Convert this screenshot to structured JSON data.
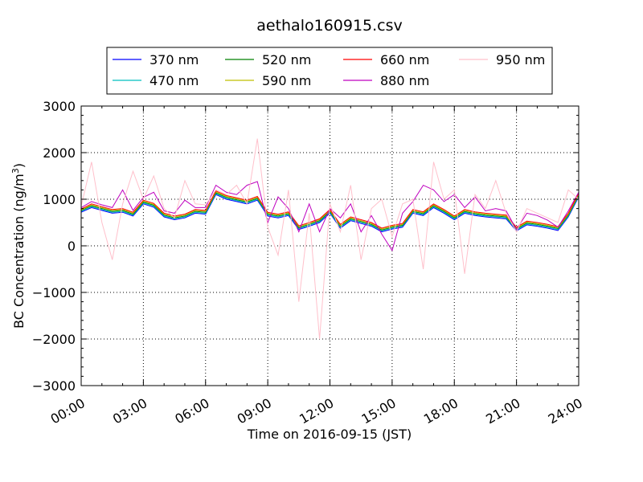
{
  "chart_data": {
    "type": "line",
    "title": "aethalo160915.csv",
    "xlabel": "Time on 2016-09-15 (JST)",
    "ylabel": "BC Concentration (ng/m³)",
    "ylabel_parts": {
      "main": "BC Concentration (ng/m",
      "sup": "3",
      "close": ")"
    },
    "xlim": [
      "00:00",
      "24:00"
    ],
    "ylim": [
      -3000,
      3000
    ],
    "x_ticks": [
      "00:00",
      "03:00",
      "06:00",
      "09:00",
      "12:00",
      "15:00",
      "18:00",
      "21:00",
      "24:00"
    ],
    "y_ticks": [
      3000,
      2000,
      1000,
      0,
      -1000,
      -2000,
      -3000
    ],
    "y_tick_labels": [
      "3000",
      "2000",
      "1000",
      "0",
      "−1000",
      "−2000",
      "−3000"
    ],
    "grid": true,
    "legend_position": "top, outside plot",
    "x": [
      "00:00",
      "00:30",
      "01:00",
      "01:30",
      "02:00",
      "02:30",
      "03:00",
      "03:30",
      "04:00",
      "04:30",
      "05:00",
      "05:30",
      "06:00",
      "06:30",
      "07:00",
      "07:30",
      "08:00",
      "08:30",
      "09:00",
      "09:30",
      "10:00",
      "10:30",
      "11:00",
      "11:30",
      "12:00",
      "12:30",
      "13:00",
      "13:30",
      "14:00",
      "14:30",
      "15:00",
      "15:30",
      "16:00",
      "16:30",
      "17:00",
      "17:30",
      "18:00",
      "18:30",
      "19:00",
      "19:30",
      "20:00",
      "20:30",
      "21:00",
      "21:30",
      "22:00",
      "22:30",
      "23:00",
      "23:30",
      "24:00"
    ],
    "series": [
      {
        "name": "370 nm",
        "color": "#0000ff",
        "values": [
          720,
          820,
          760,
          700,
          720,
          640,
          900,
          830,
          620,
          560,
          600,
          700,
          680,
          1100,
          1000,
          950,
          900,
          980,
          640,
          600,
          650,
          350,
          420,
          500,
          700,
          380,
          540,
          480,
          420,
          300,
          360,
          400,
          700,
          650,
          820,
          700,
          560,
          700,
          650,
          620,
          600,
          580,
          320,
          450,
          420,
          380,
          330,
          620,
          1050
        ]
      },
      {
        "name": "470 nm",
        "color": "#00bfbf",
        "values": [
          740,
          840,
          780,
          720,
          740,
          660,
          920,
          850,
          640,
          580,
          620,
          720,
          700,
          1120,
          1020,
          970,
          920,
          1000,
          660,
          620,
          670,
          370,
          440,
          520,
          720,
          400,
          560,
          500,
          440,
          320,
          380,
          420,
          720,
          670,
          840,
          720,
          580,
          720,
          670,
          640,
          620,
          600,
          340,
          470,
          440,
          400,
          350,
          640,
          1070
        ]
      },
      {
        "name": "520 nm",
        "color": "#008000",
        "values": [
          760,
          860,
          800,
          740,
          760,
          680,
          940,
          870,
          660,
          600,
          640,
          740,
          720,
          1140,
          1040,
          990,
          940,
          1020,
          680,
          640,
          690,
          390,
          460,
          540,
          740,
          420,
          580,
          520,
          460,
          340,
          400,
          440,
          740,
          690,
          860,
          740,
          600,
          740,
          690,
          660,
          640,
          620,
          360,
          490,
          460,
          420,
          370,
          660,
          1090
        ]
      },
      {
        "name": "590 nm",
        "color": "#bfbf00",
        "values": [
          770,
          880,
          820,
          760,
          780,
          700,
          960,
          890,
          680,
          620,
          660,
          760,
          740,
          1160,
          1060,
          1010,
          960,
          1040,
          700,
          660,
          710,
          410,
          480,
          560,
          760,
          440,
          600,
          540,
          480,
          360,
          420,
          460,
          760,
          710,
          880,
          760,
          620,
          760,
          710,
          680,
          660,
          640,
          380,
          510,
          480,
          440,
          390,
          680,
          1110
        ]
      },
      {
        "name": "660 nm",
        "color": "#ff0000",
        "values": [
          790,
          900,
          840,
          780,
          800,
          720,
          980,
          910,
          700,
          640,
          680,
          780,
          760,
          1180,
          1080,
          1030,
          980,
          1060,
          720,
          680,
          730,
          430,
          500,
          580,
          780,
          460,
          620,
          560,
          500,
          380,
          440,
          480,
          780,
          730,
          900,
          780,
          640,
          780,
          730,
          700,
          680,
          660,
          400,
          530,
          500,
          460,
          410,
          700,
          1130
        ]
      },
      {
        "name": "880 nm",
        "color": "#bf00bf",
        "values": [
          820,
          950,
          880,
          820,
          1200,
          760,
          1040,
          1150,
          750,
          700,
          980,
          820,
          820,
          1300,
          1150,
          1100,
          1300,
          1380,
          500,
          1050,
          800,
          300,
          900,
          300,
          800,
          600,
          900,
          300,
          650,
          250,
          -100,
          700,
          950,
          1300,
          1200,
          950,
          1100,
          820,
          1050,
          750,
          800,
          750,
          350,
          700,
          650,
          550,
          400,
          750,
          1150
        ]
      },
      {
        "name": "950 nm",
        "color": "#ffc0cb",
        "values": [
          850,
          1800,
          500,
          -300,
          900,
          1600,
          1000,
          1500,
          800,
          600,
          1400,
          900,
          880,
          1200,
          1100,
          1300,
          900,
          2300,
          400,
          -200,
          1200,
          -1200,
          700,
          -2000,
          900,
          300,
          1300,
          -300,
          800,
          1000,
          200,
          900,
          1000,
          -500,
          1800,
          1000,
          1200,
          -600,
          1100,
          800,
          1400,
          700,
          300,
          800,
          700,
          600,
          500,
          1200,
          1000
        ]
      }
    ]
  }
}
